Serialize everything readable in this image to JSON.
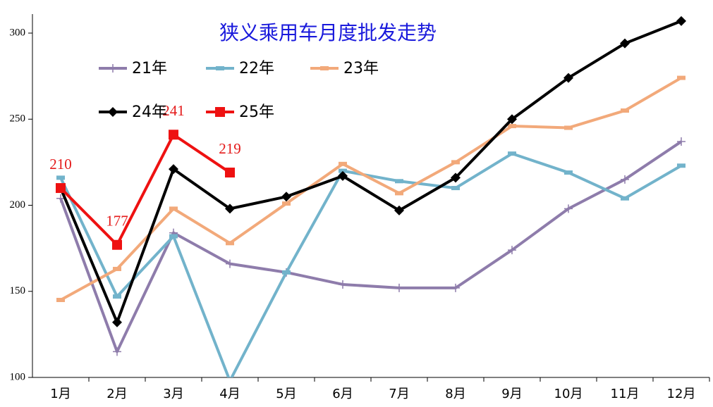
{
  "chart_data": {
    "type": "line",
    "title": "狭义乘用车月度批发走势",
    "categories": [
      "1月",
      "2月",
      "3月",
      "4月",
      "5月",
      "6月",
      "7月",
      "8月",
      "9月",
      "10月",
      "11月",
      "12月"
    ],
    "ylim": [
      100,
      300
    ],
    "yticks": [
      100,
      150,
      200,
      250,
      300
    ],
    "legend": "top-left",
    "series": [
      {
        "name": "21年",
        "color": "#8e7cab",
        "marker": "plus",
        "values": [
          204,
          115,
          184,
          166,
          161,
          154,
          152,
          152,
          174,
          198,
          215,
          237
        ]
      },
      {
        "name": "22年",
        "color": "#72b3cb",
        "marker": "dash",
        "values": [
          216,
          147,
          182,
          98,
          161,
          220,
          214,
          210,
          230,
          219,
          204,
          223
        ]
      },
      {
        "name": "23年",
        "color": "#f2a97a",
        "marker": "dash",
        "values": [
          145,
          163,
          198,
          178,
          201,
          224,
          207,
          225,
          246,
          245,
          255,
          274
        ]
      },
      {
        "name": "24年",
        "color": "#000000",
        "marker": "diamond",
        "values": [
          210,
          132,
          221,
          198,
          205,
          217,
          197,
          216,
          250,
          274,
          294,
          307
        ]
      },
      {
        "name": "25年",
        "color": "#ee1111",
        "marker": "square",
        "labels": true,
        "values": [
          210,
          177,
          241,
          219,
          null,
          null,
          null,
          null,
          null,
          null,
          null,
          null
        ]
      }
    ]
  }
}
